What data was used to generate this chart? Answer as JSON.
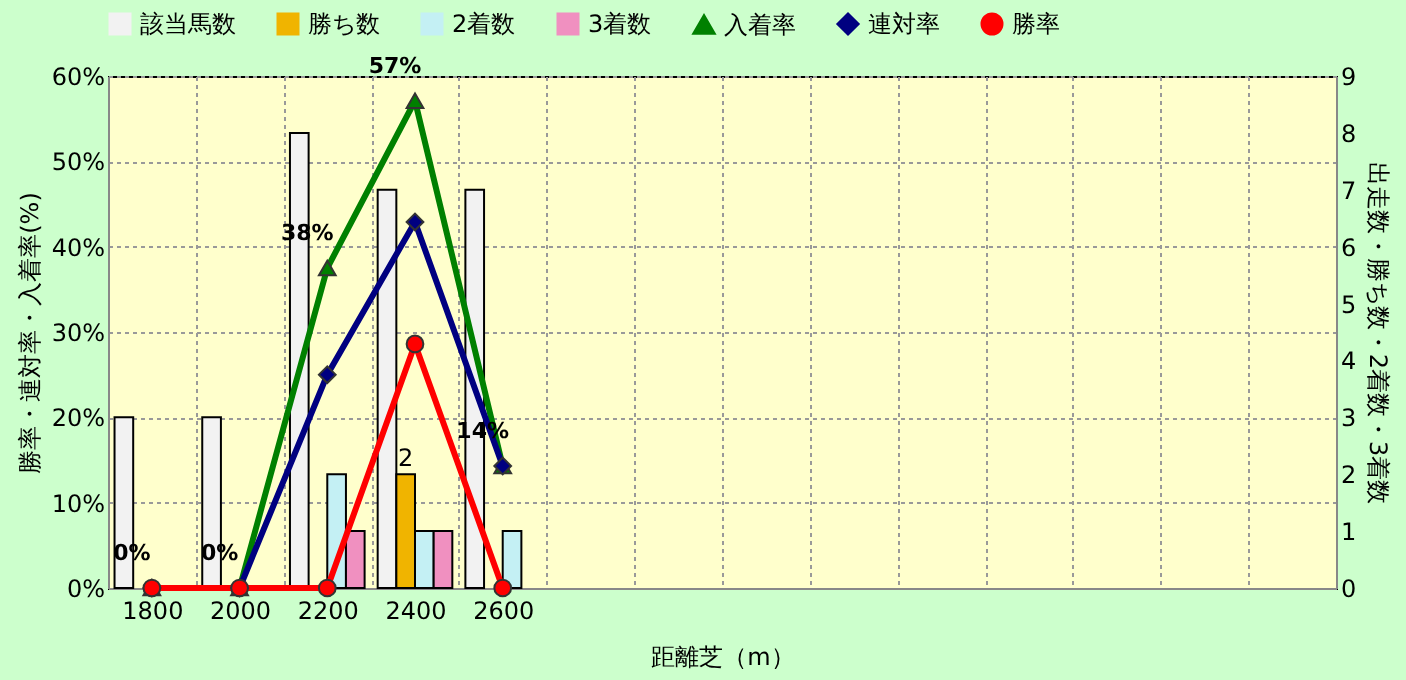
{
  "chart_data": {
    "type": "bar",
    "xlabel": "距離芝（m）",
    "ylabel": "勝率・連対率・入着率(%)",
    "y2label": "出走数・勝ち数・2着数・3着数",
    "categories": [
      "1800",
      "2000",
      "2200",
      "2400",
      "2600",
      null,
      null,
      null,
      null,
      null,
      null,
      null,
      null,
      null
    ],
    "series": [
      {
        "name": "該当馬数",
        "axis": "y2",
        "color": "#f2f2f2",
        "values": [
          3,
          3,
          8,
          7,
          7,
          null,
          null,
          null,
          null,
          null,
          null,
          null,
          null,
          null
        ]
      },
      {
        "name": "勝ち数",
        "axis": "y2",
        "color": "#f0b400",
        "values": [
          0,
          0,
          0,
          2,
          0,
          null,
          null,
          null,
          null,
          null,
          null,
          null,
          null,
          null
        ],
        "value_labels": [
          null,
          null,
          null,
          "2",
          null,
          null,
          null,
          null,
          null,
          null,
          null,
          null,
          null,
          null
        ]
      },
      {
        "name": "2着数",
        "axis": "y2",
        "color": "#c4f0f4",
        "values": [
          0,
          0,
          2,
          1,
          1,
          null,
          null,
          null,
          null,
          null,
          null,
          null,
          null,
          null
        ]
      },
      {
        "name": "3着数",
        "axis": "y2",
        "color": "#f090c0",
        "values": [
          0,
          0,
          1,
          1,
          0,
          null,
          null,
          null,
          null,
          null,
          null,
          null,
          null,
          null
        ]
      },
      {
        "name": "入着率",
        "type": "line",
        "color": "#008000",
        "marker": "triangle",
        "values": [
          0,
          0,
          37.5,
          57.1,
          14.3,
          null,
          null,
          null,
          null,
          null,
          null,
          null,
          null,
          null
        ],
        "value_labels": [
          "0%",
          "0%",
          "38%",
          "57%",
          "14%",
          null,
          null,
          null,
          null,
          null,
          null,
          null,
          null,
          null
        ]
      },
      {
        "name": "連対率",
        "type": "line",
        "color": "#000080",
        "marker": "diamond",
        "values": [
          0,
          0,
          25,
          42.9,
          14.3,
          null,
          null,
          null,
          null,
          null,
          null,
          null,
          null,
          null
        ]
      },
      {
        "name": "勝率",
        "type": "line",
        "color": "#ff0000",
        "marker": "circle",
        "values": [
          0,
          0,
          0,
          28.6,
          0,
          null,
          null,
          null,
          null,
          null,
          null,
          null,
          null,
          null
        ]
      }
    ],
    "ylim": [
      0,
      60
    ],
    "yticks": [
      {
        "value": 0,
        "label": "0%"
      },
      {
        "value": 10,
        "label": "10%"
      },
      {
        "value": 20,
        "label": "20%"
      },
      {
        "value": 30,
        "label": "30%"
      },
      {
        "value": 40,
        "label": "40%"
      },
      {
        "value": 50,
        "label": "50%"
      },
      {
        "value": 60,
        "label": "60%"
      }
    ],
    "y2lim": [
      0,
      9
    ],
    "y2ticks": [
      0,
      1,
      2,
      3,
      4,
      5,
      6,
      7,
      8,
      9
    ],
    "grid": true,
    "legend": "top"
  }
}
